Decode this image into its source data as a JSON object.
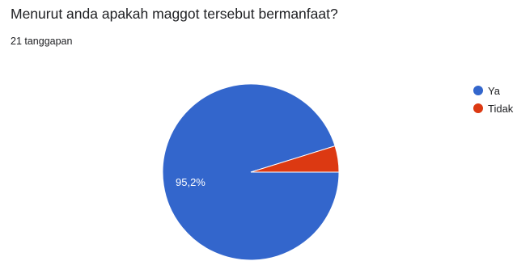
{
  "question": {
    "title": "Menurut anda apakah maggot tersebut bermanfaat?",
    "response_count": "21 tanggapan"
  },
  "chart_data": {
    "type": "pie",
    "title": "Menurut anda apakah maggot tersebut bermanfaat?",
    "slices": [
      {
        "label": "Ya",
        "value": 95.2,
        "display": "95,2%",
        "color": "#3366cc"
      },
      {
        "label": "Tidak",
        "value": 4.8,
        "display": "",
        "color": "#dc3912"
      }
    ],
    "legend_position": "right"
  }
}
